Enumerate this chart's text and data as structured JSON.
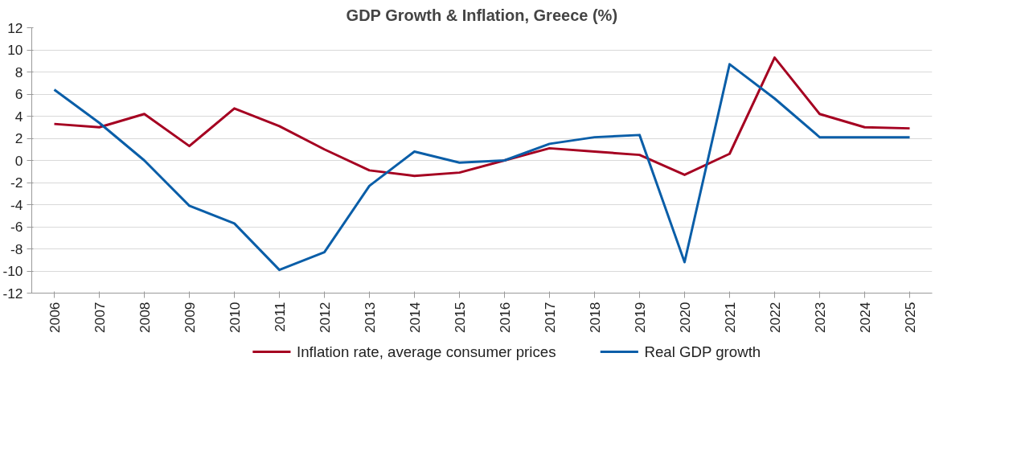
{
  "chart_data": {
    "type": "line",
    "title": "GDP Growth & Inflation, Greece (%)",
    "categories": [
      "2006",
      "2007",
      "2008",
      "2009",
      "2010",
      "2011",
      "2012",
      "2013",
      "2014",
      "2015",
      "2016",
      "2017",
      "2018",
      "2019",
      "2020",
      "2021",
      "2022",
      "2023",
      "2024",
      "2025"
    ],
    "series": [
      {
        "name": "Inflation rate, average consumer prices",
        "color": "#a50021",
        "values": [
          3.3,
          3.0,
          4.2,
          1.3,
          4.7,
          3.1,
          1.0,
          -0.9,
          -1.4,
          -1.1,
          0.0,
          1.1,
          0.8,
          0.5,
          -1.3,
          0.6,
          9.3,
          4.2,
          3.0,
          2.9
        ]
      },
      {
        "name": "Real GDP growth",
        "color": "#0a5ea8",
        "values": [
          6.4,
          3.4,
          0.0,
          -4.1,
          -5.7,
          -9.9,
          -8.3,
          -2.3,
          0.8,
          -0.2,
          0.0,
          1.5,
          2.1,
          2.3,
          -9.2,
          8.7,
          5.6,
          2.1,
          2.1,
          2.1
        ]
      }
    ],
    "ylim": [
      -12,
      12
    ],
    "yticks": [
      -12,
      -10,
      -8,
      -6,
      -4,
      -2,
      0,
      2,
      4,
      6,
      8,
      10,
      12
    ],
    "grid": "y",
    "legend": "bottom",
    "marker": "none",
    "line_style": "solid"
  }
}
